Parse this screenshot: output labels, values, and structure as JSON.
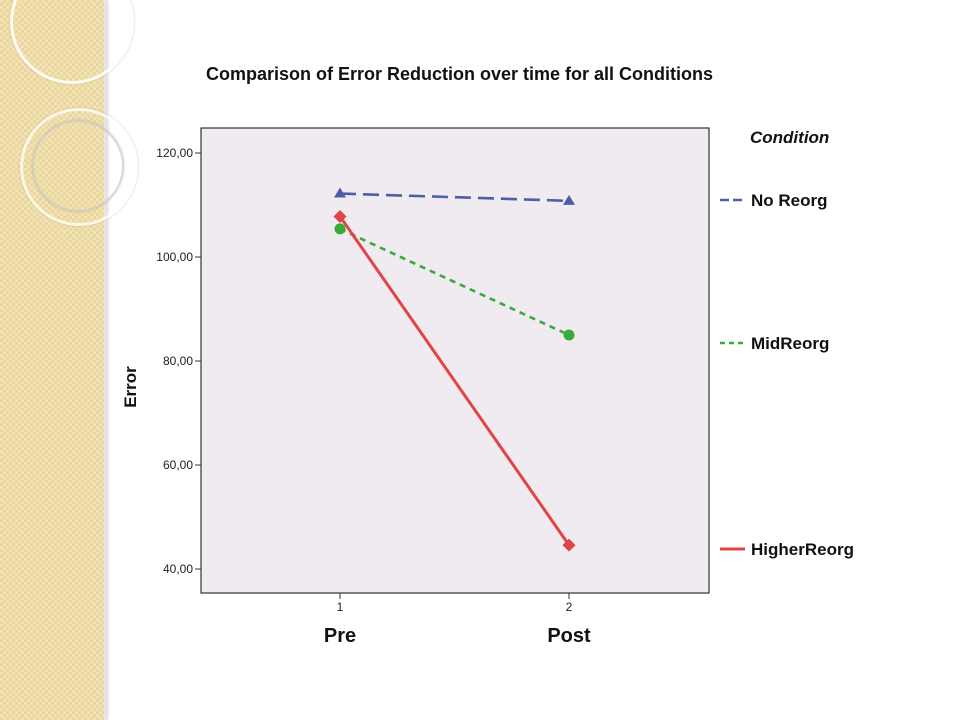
{
  "chart_data": {
    "type": "line",
    "title": "Comparison of Error Reduction over time for all Conditions",
    "ylabel": "Error",
    "ylim": [
      36,
      124
    ],
    "yticks": [
      40,
      60,
      80,
      100,
      120
    ],
    "ytick_labels": [
      "40,00",
      "60,00",
      "80,00",
      "100,00",
      "120,00"
    ],
    "x_positions": [
      1,
      2
    ],
    "xtick_labels": [
      "1",
      "2"
    ],
    "x_category_labels": [
      "Pre",
      "Post"
    ],
    "legend_title": "Condition",
    "legend_position": "right",
    "grid": false,
    "plot_background": "#f0ebf0",
    "series": [
      {
        "name": "No Reorg",
        "values": [
          112.2,
          110.8
        ],
        "color": "#4a5fa8",
        "dash": "dashed",
        "marker": "triangle"
      },
      {
        "name": "MidReorg",
        "values": [
          105.4,
          85.0
        ],
        "color": "#3aaa3a",
        "dash": "dotted",
        "marker": "circle"
      },
      {
        "name": "HigherReorg",
        "values": [
          107.8,
          44.6
        ],
        "color": "#e04545",
        "dash": "solid",
        "marker": "diamond"
      }
    ]
  }
}
